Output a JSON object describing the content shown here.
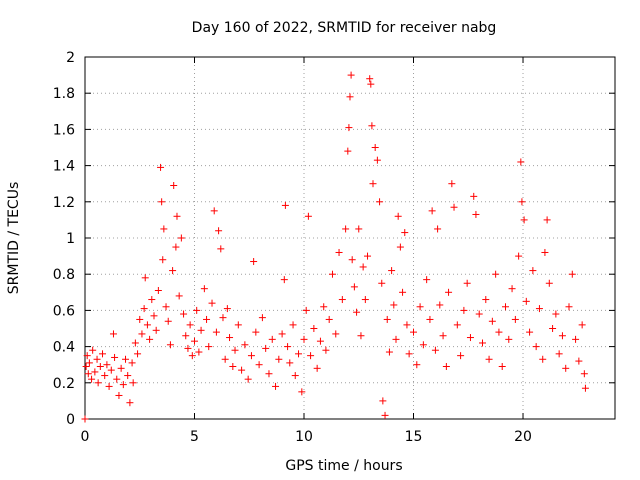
{
  "chart_data": {
    "type": "scatter",
    "title": "Day 160 of 2022, SRMTID for receiver nabg",
    "xlabel": "GPS time / hours",
    "ylabel": "SRMTID / TECUs",
    "xlim": [
      0,
      24.2
    ],
    "ylim": [
      0,
      2
    ],
    "xticks": [
      0,
      5,
      10,
      15,
      20
    ],
    "xtick_labels": [
      "0",
      "5",
      "10",
      "15",
      "20"
    ],
    "yticks": [
      0,
      0.2,
      0.4,
      0.6,
      0.8,
      1,
      1.2,
      1.4,
      1.6,
      1.8,
      2
    ],
    "ytick_labels": [
      "0",
      "0.2",
      "0.4",
      "0.6",
      "0.8",
      "1",
      "1.2",
      "1.4",
      "1.6",
      "1.8",
      "2"
    ],
    "grid": true,
    "marker": "+",
    "series": [
      {
        "name": "SRMTID",
        "color": "#ff0000",
        "points": [
          [
            0.0,
            0.0
          ],
          [
            0.05,
            0.29
          ],
          [
            0.1,
            0.35
          ],
          [
            0.15,
            0.25
          ],
          [
            0.2,
            0.31
          ],
          [
            0.3,
            0.22
          ],
          [
            0.35,
            0.38
          ],
          [
            0.45,
            0.26
          ],
          [
            0.55,
            0.33
          ],
          [
            0.6,
            0.2
          ],
          [
            0.7,
            0.29
          ],
          [
            0.8,
            0.36
          ],
          [
            0.9,
            0.24
          ],
          [
            1.0,
            0.3
          ],
          [
            1.1,
            0.18
          ],
          [
            1.2,
            0.27
          ],
          [
            1.3,
            0.47
          ],
          [
            1.35,
            0.34
          ],
          [
            1.45,
            0.22
          ],
          [
            1.55,
            0.13
          ],
          [
            1.65,
            0.28
          ],
          [
            1.75,
            0.19
          ],
          [
            1.85,
            0.33
          ],
          [
            1.95,
            0.24
          ],
          [
            2.05,
            0.09
          ],
          [
            2.15,
            0.31
          ],
          [
            2.2,
            0.2
          ],
          [
            2.3,
            0.42
          ],
          [
            2.4,
            0.36
          ],
          [
            2.5,
            0.55
          ],
          [
            2.6,
            0.47
          ],
          [
            2.7,
            0.61
          ],
          [
            2.75,
            0.78
          ],
          [
            2.85,
            0.52
          ],
          [
            2.95,
            0.44
          ],
          [
            3.05,
            0.66
          ],
          [
            3.15,
            0.57
          ],
          [
            3.25,
            0.49
          ],
          [
            3.35,
            0.71
          ],
          [
            3.45,
            1.39
          ],
          [
            3.5,
            1.2
          ],
          [
            3.55,
            0.88
          ],
          [
            3.6,
            1.05
          ],
          [
            3.7,
            0.62
          ],
          [
            3.8,
            0.54
          ],
          [
            3.9,
            0.41
          ],
          [
            4.0,
            0.82
          ],
          [
            4.05,
            1.29
          ],
          [
            4.15,
            0.95
          ],
          [
            4.2,
            1.12
          ],
          [
            4.3,
            0.68
          ],
          [
            4.4,
            1.0
          ],
          [
            4.5,
            0.58
          ],
          [
            4.6,
            0.46
          ],
          [
            4.7,
            0.39
          ],
          [
            4.8,
            0.52
          ],
          [
            4.9,
            0.35
          ],
          [
            5.0,
            0.43
          ],
          [
            5.1,
            0.6
          ],
          [
            5.2,
            0.37
          ],
          [
            5.3,
            0.49
          ],
          [
            5.45,
            0.72
          ],
          [
            5.55,
            0.55
          ],
          [
            5.65,
            0.4
          ],
          [
            5.8,
            0.64
          ],
          [
            5.9,
            1.15
          ],
          [
            6.0,
            0.48
          ],
          [
            6.1,
            1.04
          ],
          [
            6.2,
            0.94
          ],
          [
            6.3,
            0.56
          ],
          [
            6.4,
            0.33
          ],
          [
            6.5,
            0.61
          ],
          [
            6.6,
            0.45
          ],
          [
            6.75,
            0.29
          ],
          [
            6.85,
            0.38
          ],
          [
            7.0,
            0.52
          ],
          [
            7.15,
            0.27
          ],
          [
            7.3,
            0.41
          ],
          [
            7.45,
            0.22
          ],
          [
            7.6,
            0.35
          ],
          [
            7.7,
            0.87
          ],
          [
            7.8,
            0.48
          ],
          [
            7.95,
            0.3
          ],
          [
            8.1,
            0.56
          ],
          [
            8.25,
            0.39
          ],
          [
            8.4,
            0.25
          ],
          [
            8.55,
            0.44
          ],
          [
            8.7,
            0.18
          ],
          [
            8.85,
            0.33
          ],
          [
            9.0,
            0.47
          ],
          [
            9.1,
            0.77
          ],
          [
            9.15,
            1.18
          ],
          [
            9.25,
            0.4
          ],
          [
            9.35,
            0.31
          ],
          [
            9.5,
            0.52
          ],
          [
            9.6,
            0.24
          ],
          [
            9.75,
            0.36
          ],
          [
            9.9,
            0.15
          ],
          [
            10.0,
            0.44
          ],
          [
            10.1,
            0.6
          ],
          [
            10.2,
            1.12
          ],
          [
            10.3,
            0.35
          ],
          [
            10.45,
            0.5
          ],
          [
            10.6,
            0.28
          ],
          [
            10.75,
            0.43
          ],
          [
            10.9,
            0.62
          ],
          [
            11.0,
            0.38
          ],
          [
            11.15,
            0.55
          ],
          [
            11.3,
            0.8
          ],
          [
            11.45,
            0.47
          ],
          [
            11.6,
            0.92
          ],
          [
            11.75,
            0.66
          ],
          [
            11.9,
            1.05
          ],
          [
            12.0,
            1.48
          ],
          [
            12.05,
            1.61
          ],
          [
            12.1,
            1.78
          ],
          [
            12.15,
            1.9
          ],
          [
            12.2,
            0.88
          ],
          [
            12.3,
            0.73
          ],
          [
            12.4,
            0.59
          ],
          [
            12.5,
            1.05
          ],
          [
            12.6,
            0.46
          ],
          [
            12.7,
            0.84
          ],
          [
            12.8,
            0.66
          ],
          [
            12.9,
            0.9
          ],
          [
            13.0,
            1.88
          ],
          [
            13.05,
            1.85
          ],
          [
            13.1,
            1.62
          ],
          [
            13.15,
            1.3
          ],
          [
            13.25,
            1.5
          ],
          [
            13.35,
            1.43
          ],
          [
            13.45,
            1.2
          ],
          [
            13.55,
            0.75
          ],
          [
            13.6,
            0.1
          ],
          [
            13.7,
            0.02
          ],
          [
            13.8,
            0.55
          ],
          [
            13.9,
            0.37
          ],
          [
            14.0,
            0.82
          ],
          [
            14.1,
            0.63
          ],
          [
            14.2,
            0.44
          ],
          [
            14.3,
            1.12
          ],
          [
            14.4,
            0.95
          ],
          [
            14.5,
            0.7
          ],
          [
            14.6,
            1.03
          ],
          [
            14.7,
            0.52
          ],
          [
            14.8,
            0.36
          ],
          [
            15.0,
            0.48
          ],
          [
            15.15,
            0.3
          ],
          [
            15.3,
            0.62
          ],
          [
            15.45,
            0.41
          ],
          [
            15.6,
            0.77
          ],
          [
            15.75,
            0.55
          ],
          [
            15.85,
            1.15
          ],
          [
            16.0,
            0.38
          ],
          [
            16.1,
            1.05
          ],
          [
            16.2,
            0.63
          ],
          [
            16.35,
            0.46
          ],
          [
            16.5,
            0.29
          ],
          [
            16.6,
            0.7
          ],
          [
            16.75,
            1.3
          ],
          [
            16.85,
            1.17
          ],
          [
            17.0,
            0.52
          ],
          [
            17.15,
            0.35
          ],
          [
            17.3,
            0.6
          ],
          [
            17.45,
            0.75
          ],
          [
            17.6,
            0.45
          ],
          [
            17.75,
            1.23
          ],
          [
            17.85,
            1.13
          ],
          [
            18.0,
            0.58
          ],
          [
            18.15,
            0.42
          ],
          [
            18.3,
            0.66
          ],
          [
            18.45,
            0.33
          ],
          [
            18.6,
            0.54
          ],
          [
            18.75,
            0.8
          ],
          [
            18.9,
            0.48
          ],
          [
            19.05,
            0.29
          ],
          [
            19.2,
            0.62
          ],
          [
            19.35,
            0.44
          ],
          [
            19.5,
            0.72
          ],
          [
            19.65,
            0.55
          ],
          [
            19.8,
            0.9
          ],
          [
            19.9,
            1.42
          ],
          [
            19.95,
            1.2
          ],
          [
            20.05,
            1.1
          ],
          [
            20.15,
            0.65
          ],
          [
            20.3,
            0.48
          ],
          [
            20.45,
            0.82
          ],
          [
            20.6,
            0.4
          ],
          [
            20.75,
            0.61
          ],
          [
            20.9,
            0.33
          ],
          [
            21.0,
            0.92
          ],
          [
            21.1,
            1.1
          ],
          [
            21.2,
            0.75
          ],
          [
            21.35,
            0.5
          ],
          [
            21.5,
            0.58
          ],
          [
            21.65,
            0.36
          ],
          [
            21.8,
            0.46
          ],
          [
            21.95,
            0.28
          ],
          [
            22.1,
            0.62
          ],
          [
            22.25,
            0.8
          ],
          [
            22.4,
            0.44
          ],
          [
            22.55,
            0.32
          ],
          [
            22.7,
            0.52
          ],
          [
            22.8,
            0.25
          ],
          [
            22.85,
            0.17
          ]
        ]
      }
    ]
  }
}
